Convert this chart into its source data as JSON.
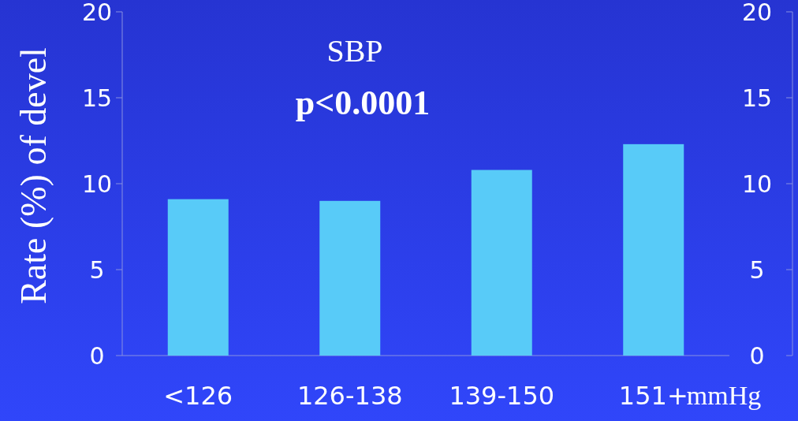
{
  "chart_data": {
    "type": "bar",
    "title": "SBP",
    "annotations": [
      "p<0.0001"
    ],
    "ylabel": "Rate (%) of devel",
    "xlabel": "mmHg",
    "categories": [
      "<126",
      "126-138",
      "139-150",
      "151+"
    ],
    "series": [
      {
        "color": "#58cbf8",
        "values": [
          9.1,
          9.0,
          10.8,
          12.3
        ]
      }
    ],
    "ylim": [
      0,
      20
    ],
    "yticks": [
      0,
      5,
      10,
      15,
      20
    ],
    "y2lim": [
      0,
      20
    ],
    "y2ticks": [
      0,
      5,
      10,
      15,
      20
    ]
  }
}
